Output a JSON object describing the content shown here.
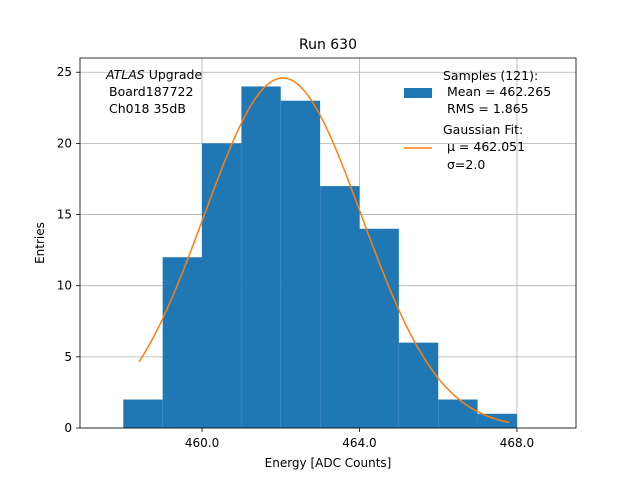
{
  "chart_data": {
    "type": "histogram",
    "title": "Run 630",
    "xlabel": "Energy [ADC Counts]",
    "ylabel": "Entries",
    "xlim": [
      456.9,
      469.5
    ],
    "ylim": [
      0,
      26.0
    ],
    "xticks": [
      460.0,
      464.0,
      468.0
    ],
    "xtick_labels": [
      "460.0",
      "464.0",
      "468.0"
    ],
    "yticks": [
      0,
      5,
      10,
      15,
      20,
      25
    ],
    "ytick_labels": [
      "0",
      "5",
      "10",
      "15",
      "20",
      "25"
    ],
    "grid": true,
    "bins": [
      {
        "x0": 458.0,
        "x1": 459.0,
        "count": 2
      },
      {
        "x0": 459.0,
        "x1": 460.0,
        "count": 12
      },
      {
        "x0": 460.0,
        "x1": 461.0,
        "count": 20
      },
      {
        "x0": 461.0,
        "x1": 462.0,
        "count": 24
      },
      {
        "x0": 462.0,
        "x1": 463.0,
        "count": 23
      },
      {
        "x0": 463.0,
        "x1": 464.0,
        "count": 17
      },
      {
        "x0": 464.0,
        "x1": 465.0,
        "count": 14
      },
      {
        "x0": 465.0,
        "x1": 466.0,
        "count": 6
      },
      {
        "x0": 466.0,
        "x1": 467.0,
        "count": 2
      },
      {
        "x0": 467.0,
        "x1": 468.0,
        "count": 1
      }
    ],
    "fit": {
      "type": "gaussian",
      "mu": 462.051,
      "sigma": 2.0,
      "amplitude": 24.6,
      "x_range": [
        458.4,
        467.8
      ]
    },
    "colors": {
      "bars": "#1f77b4",
      "fit": "#ff7f0e",
      "grid": "#b0b0b0"
    },
    "annotation": {
      "experiment": "ATLAS",
      "line1_rest": " Upgrade",
      "line2": "Board187722",
      "line3": "Ch018 35dB"
    },
    "legend": {
      "position": "top-right",
      "samples_title": "Samples (121):",
      "samples_mean": "Mean = 462.265",
      "samples_rms": "RMS = 1.865",
      "fit_title": "Gaussian Fit:",
      "fit_mu": "μ = 462.051",
      "fit_sigma": "σ=2.0"
    }
  }
}
